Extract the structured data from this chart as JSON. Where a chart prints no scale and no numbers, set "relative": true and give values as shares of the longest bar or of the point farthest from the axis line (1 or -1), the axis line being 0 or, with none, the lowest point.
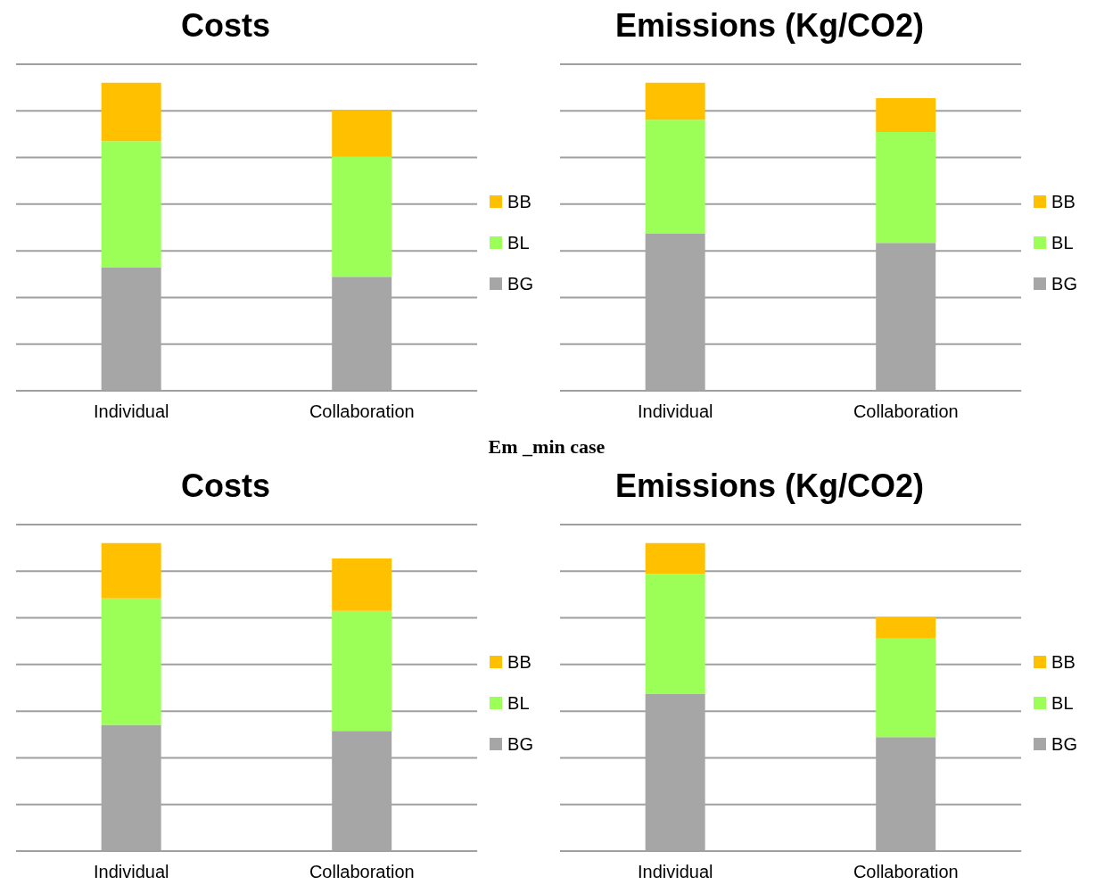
{
  "chart_data": [
    {
      "type": "bar",
      "title": "Costs",
      "categories": [
        "Individual",
        "Collaboration"
      ],
      "stacked": true,
      "relative": true,
      "grid": "y",
      "legend": "right",
      "series": [
        {
          "name": "BG",
          "color": "#a6a6a6",
          "values": [
            0.4,
            0.37
          ]
        },
        {
          "name": "BL",
          "color": "#9cff57",
          "values": [
            0.41,
            0.39
          ]
        },
        {
          "name": "BB",
          "color": "#ffc000",
          "values": [
            0.19,
            0.15
          ]
        }
      ]
    },
    {
      "type": "bar",
      "title": "Emissions (Kg/CO2)",
      "categories": [
        "Individual",
        "Collaboration"
      ],
      "stacked": true,
      "relative": true,
      "grid": "y",
      "legend": "right",
      "series": [
        {
          "name": "BG",
          "color": "#a6a6a6",
          "values": [
            0.51,
            0.48
          ]
        },
        {
          "name": "BL",
          "color": "#9cff57",
          "values": [
            0.37,
            0.36
          ]
        },
        {
          "name": "BB",
          "color": "#ffc000",
          "values": [
            0.12,
            0.11
          ]
        }
      ]
    },
    {
      "type": "bar",
      "title": "Costs",
      "annotations": [
        "Em _min case"
      ],
      "categories": [
        "Individual",
        "Collaboration"
      ],
      "stacked": true,
      "relative": true,
      "grid": "y",
      "legend": "right",
      "series": [
        {
          "name": "BG",
          "color": "#a6a6a6",
          "values": [
            0.41,
            0.39
          ]
        },
        {
          "name": "BL",
          "color": "#9cff57",
          "values": [
            0.41,
            0.39
          ]
        },
        {
          "name": "BB",
          "color": "#ffc000",
          "values": [
            0.18,
            0.17
          ]
        }
      ]
    },
    {
      "type": "bar",
      "title": "Emissions (Kg/CO2)",
      "categories": [
        "Individual",
        "Collaboration"
      ],
      "stacked": true,
      "relative": true,
      "grid": "y",
      "legend": "right",
      "series": [
        {
          "name": "BG",
          "color": "#a6a6a6",
          "values": [
            0.51,
            0.37
          ]
        },
        {
          "name": "BL",
          "color": "#9cff57",
          "values": [
            0.39,
            0.32
          ]
        },
        {
          "name": "BB",
          "color": "#ffc000",
          "values": [
            0.1,
            0.07
          ]
        }
      ]
    }
  ]
}
